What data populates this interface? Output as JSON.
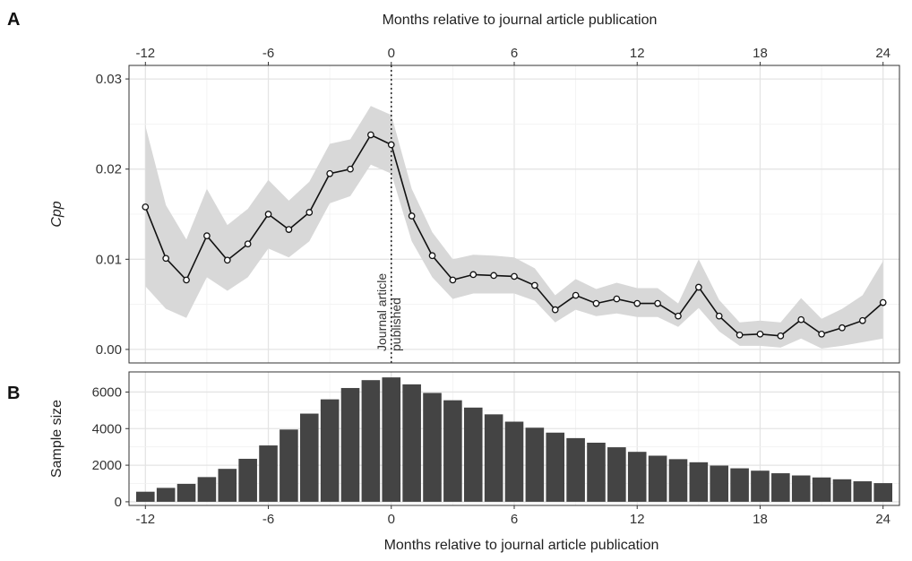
{
  "panels": {
    "a_label": "A",
    "b_label": "B"
  },
  "top_axis_title": "Months relative to journal article publication",
  "chart_data": [
    {
      "panel": "A",
      "type": "line",
      "xlabel": "Months relative to journal article publication",
      "ylabel": "Cpp",
      "xlim": [
        -12.8,
        24.8
      ],
      "ylim": [
        -0.0015,
        0.0315
      ],
      "xticks": [
        -12,
        -6,
        0,
        6,
        12,
        18,
        24
      ],
      "yticks": [
        0.0,
        0.01,
        0.02,
        0.03
      ],
      "ytick_labels": [
        "0.00",
        "0.01",
        "0.02",
        "0.03"
      ],
      "grid": true,
      "x": [
        -12,
        -11,
        -10,
        -9,
        -8,
        -7,
        -6,
        -5,
        -4,
        -3,
        -2,
        -1,
        0,
        1,
        2,
        3,
        4,
        5,
        6,
        7,
        8,
        9,
        10,
        11,
        12,
        13,
        14,
        15,
        16,
        17,
        18,
        19,
        20,
        21,
        22,
        23,
        24
      ],
      "y": [
        0.0158,
        0.0101,
        0.0077,
        0.0126,
        0.0099,
        0.0117,
        0.015,
        0.0133,
        0.0152,
        0.0195,
        0.02,
        0.0238,
        0.0227,
        0.0148,
        0.0104,
        0.0077,
        0.0083,
        0.0082,
        0.0081,
        0.0071,
        0.0044,
        0.006,
        0.0051,
        0.0056,
        0.0051,
        0.0051,
        0.0037,
        0.0069,
        0.0037,
        0.0016,
        0.0017,
        0.0015,
        0.0033,
        0.0017,
        0.0024,
        0.0032,
        0.0052
      ],
      "ci_lower": [
        0.007,
        0.0045,
        0.0035,
        0.008,
        0.0065,
        0.008,
        0.0112,
        0.0102,
        0.012,
        0.0162,
        0.017,
        0.0205,
        0.0195,
        0.012,
        0.008,
        0.0056,
        0.0062,
        0.0062,
        0.0062,
        0.0054,
        0.003,
        0.0044,
        0.0037,
        0.004,
        0.0036,
        0.0036,
        0.0025,
        0.0046,
        0.002,
        0.0004,
        0.0004,
        0.0002,
        0.0012,
        0.0001,
        0.0004,
        0.0008,
        0.0012
      ],
      "ci_upper": [
        0.0248,
        0.016,
        0.0122,
        0.0178,
        0.0138,
        0.0156,
        0.0188,
        0.0165,
        0.0186,
        0.0228,
        0.0233,
        0.027,
        0.026,
        0.0178,
        0.013,
        0.01,
        0.0105,
        0.0104,
        0.0102,
        0.009,
        0.006,
        0.0078,
        0.0067,
        0.0074,
        0.0068,
        0.0068,
        0.0051,
        0.01,
        0.0055,
        0.003,
        0.0032,
        0.003,
        0.0057,
        0.0034,
        0.0045,
        0.006,
        0.0098
      ],
      "colors": {
        "line": "#111111",
        "ribbon": "#d8d8d8",
        "point_fill": "#ffffff"
      },
      "annotation": {
        "x": 0,
        "line1": "Journal article",
        "line2": "published"
      }
    },
    {
      "panel": "B",
      "type": "bar",
      "xlabel": "Months relative to journal article publication",
      "ylabel": "Sample size",
      "xlim": [
        -12.8,
        24.8
      ],
      "ylim": [
        -200,
        7100
      ],
      "xticks": [
        -12,
        -6,
        0,
        6,
        12,
        18,
        24
      ],
      "yticks": [
        0,
        2000,
        4000,
        6000
      ],
      "grid": true,
      "x": [
        -12,
        -11,
        -10,
        -9,
        -8,
        -7,
        -6,
        -5,
        -4,
        -3,
        -2,
        -1,
        0,
        1,
        2,
        3,
        4,
        5,
        6,
        7,
        8,
        9,
        10,
        11,
        12,
        13,
        14,
        15,
        16,
        17,
        18,
        19,
        20,
        21,
        22,
        23,
        24
      ],
      "values": [
        550,
        760,
        980,
        1350,
        1800,
        2350,
        3080,
        3950,
        4820,
        5600,
        6220,
        6650,
        6800,
        6420,
        5950,
        5550,
        5150,
        4780,
        4380,
        4050,
        3780,
        3480,
        3230,
        2980,
        2730,
        2520,
        2330,
        2160,
        1980,
        1830,
        1700,
        1560,
        1440,
        1330,
        1230,
        1120,
        1020
      ],
      "colors": {
        "bar": "#444444"
      }
    }
  ]
}
